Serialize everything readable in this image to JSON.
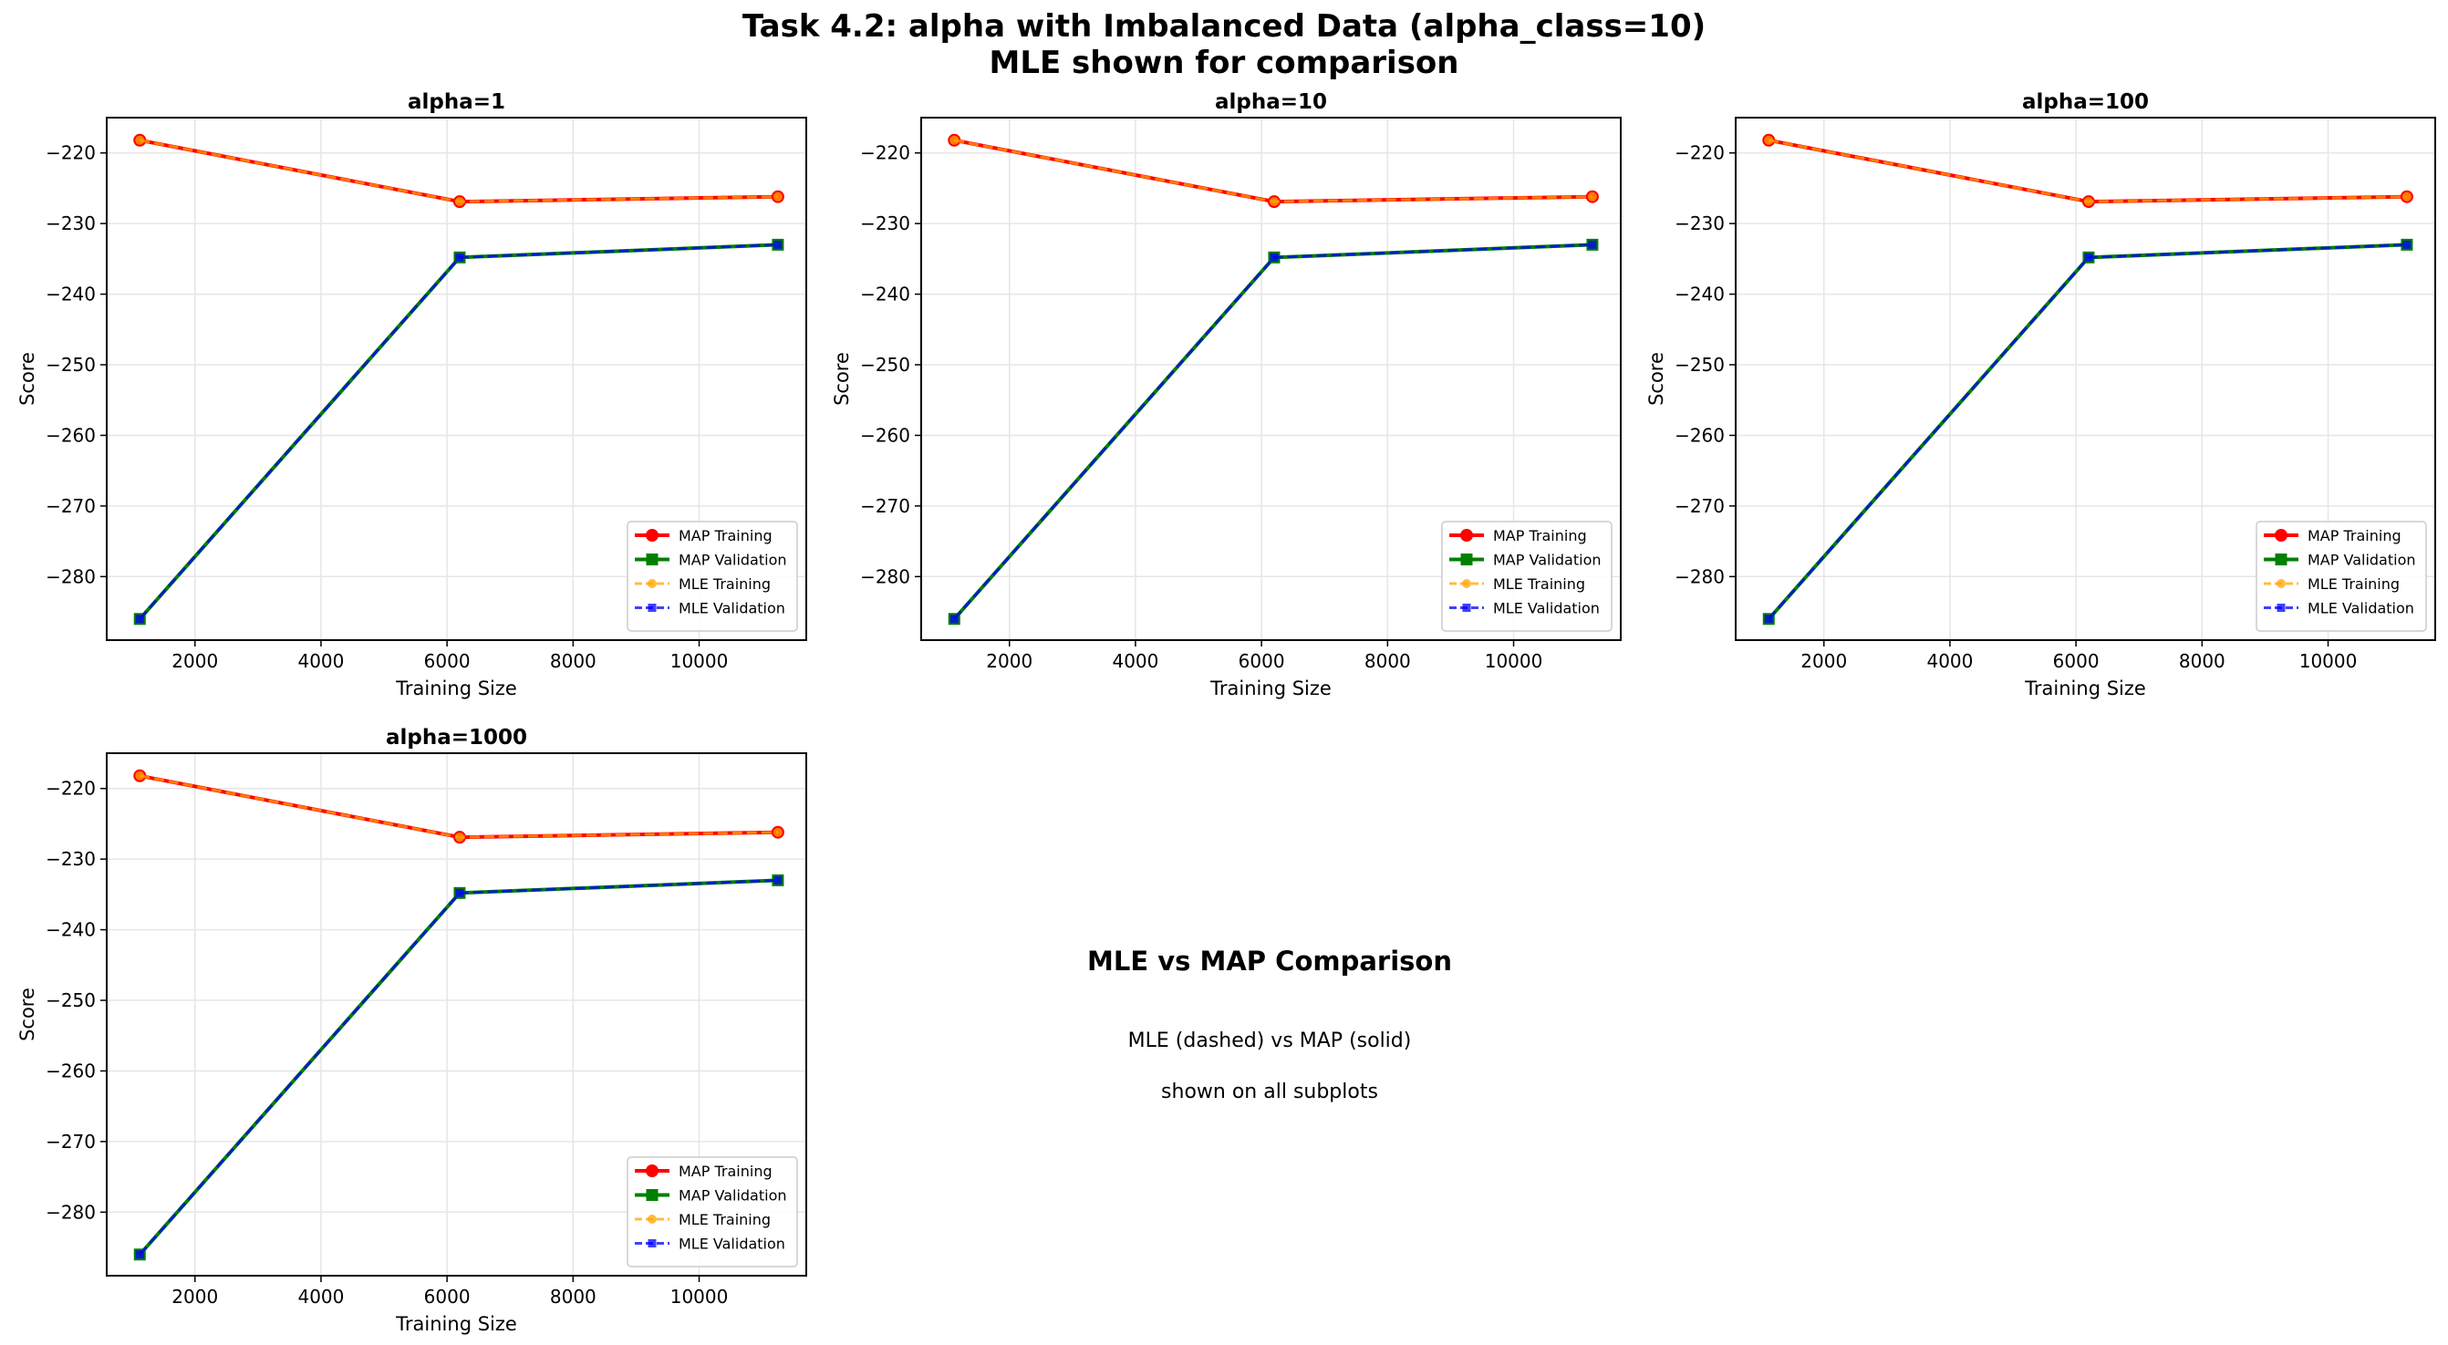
{
  "figure": {
    "title_line1": "Task 4.2: alpha with Imbalanced Data (alpha_class=10)",
    "title_line2": "MLE shown for comparison"
  },
  "note": {
    "title": "MLE vs MAP Comparison",
    "line1": "MLE (dashed) vs MAP (solid)",
    "line2": "shown on all subplots"
  },
  "colors": {
    "map_training": "#ff0000",
    "map_validation": "#008000",
    "mle_training": "#ffa500",
    "mle_validation": "#0000ff"
  },
  "chart_data": [
    {
      "type": "line",
      "title": "alpha=1",
      "xlabel": "Training Size",
      "ylabel": "Score",
      "xlim": [
        600,
        11700
      ],
      "ylim": [
        -289,
        -215
      ],
      "xticks": [
        2000,
        4000,
        6000,
        8000,
        10000
      ],
      "yticks": [
        -220,
        -230,
        -240,
        -250,
        -260,
        -270,
        -280
      ],
      "grid": true,
      "legend_position": "lower-right",
      "x": [
        1125,
        6200,
        11250
      ],
      "series": [
        {
          "name": "MAP Training",
          "values": [
            -218.2,
            -226.9,
            -226.2
          ],
          "color": "#ff0000",
          "linestyle": "solid",
          "marker": "circle"
        },
        {
          "name": "MAP Validation",
          "values": [
            -286.0,
            -234.8,
            -233.0
          ],
          "color": "#008000",
          "linestyle": "solid",
          "marker": "square"
        },
        {
          "name": "MLE Training",
          "values": [
            -218.2,
            -226.9,
            -226.2
          ],
          "color": "#ffa500",
          "linestyle": "dashed",
          "marker": "circle"
        },
        {
          "name": "MLE Validation",
          "values": [
            -286.0,
            -234.8,
            -233.0
          ],
          "color": "#0000ff",
          "linestyle": "dashed",
          "marker": "square"
        }
      ]
    },
    {
      "type": "line",
      "title": "alpha=10",
      "xlabel": "Training Size",
      "ylabel": "Score",
      "xlim": [
        600,
        11700
      ],
      "ylim": [
        -289,
        -215
      ],
      "xticks": [
        2000,
        4000,
        6000,
        8000,
        10000
      ],
      "yticks": [
        -220,
        -230,
        -240,
        -250,
        -260,
        -270,
        -280
      ],
      "grid": true,
      "legend_position": "lower-right",
      "x": [
        1125,
        6200,
        11250
      ],
      "series": [
        {
          "name": "MAP Training",
          "values": [
            -218.2,
            -226.9,
            -226.2
          ],
          "color": "#ff0000",
          "linestyle": "solid",
          "marker": "circle"
        },
        {
          "name": "MAP Validation",
          "values": [
            -286.0,
            -234.8,
            -233.0
          ],
          "color": "#008000",
          "linestyle": "solid",
          "marker": "square"
        },
        {
          "name": "MLE Training",
          "values": [
            -218.2,
            -226.9,
            -226.2
          ],
          "color": "#ffa500",
          "linestyle": "dashed",
          "marker": "circle"
        },
        {
          "name": "MLE Validation",
          "values": [
            -286.0,
            -234.8,
            -233.0
          ],
          "color": "#0000ff",
          "linestyle": "dashed",
          "marker": "square"
        }
      ]
    },
    {
      "type": "line",
      "title": "alpha=100",
      "xlabel": "Training Size",
      "ylabel": "Score",
      "xlim": [
        600,
        11700
      ],
      "ylim": [
        -289,
        -215
      ],
      "xticks": [
        2000,
        4000,
        6000,
        8000,
        10000
      ],
      "yticks": [
        -220,
        -230,
        -240,
        -250,
        -260,
        -270,
        -280
      ],
      "grid": true,
      "legend_position": "lower-right",
      "x": [
        1125,
        6200,
        11250
      ],
      "series": [
        {
          "name": "MAP Training",
          "values": [
            -218.2,
            -226.9,
            -226.2
          ],
          "color": "#ff0000",
          "linestyle": "solid",
          "marker": "circle"
        },
        {
          "name": "MAP Validation",
          "values": [
            -286.0,
            -234.8,
            -233.0
          ],
          "color": "#008000",
          "linestyle": "solid",
          "marker": "square"
        },
        {
          "name": "MLE Training",
          "values": [
            -218.2,
            -226.9,
            -226.2
          ],
          "color": "#ffa500",
          "linestyle": "dashed",
          "marker": "circle"
        },
        {
          "name": "MLE Validation",
          "values": [
            -286.0,
            -234.8,
            -233.0
          ],
          "color": "#0000ff",
          "linestyle": "dashed",
          "marker": "square"
        }
      ]
    },
    {
      "type": "line",
      "title": "alpha=1000",
      "xlabel": "Training Size",
      "ylabel": "Score",
      "xlim": [
        600,
        11700
      ],
      "ylim": [
        -289,
        -215
      ],
      "xticks": [
        2000,
        4000,
        6000,
        8000,
        10000
      ],
      "yticks": [
        -220,
        -230,
        -240,
        -250,
        -260,
        -270,
        -280
      ],
      "grid": true,
      "legend_position": "lower-right",
      "x": [
        1125,
        6200,
        11250
      ],
      "series": [
        {
          "name": "MAP Training",
          "values": [
            -218.2,
            -226.9,
            -226.2
          ],
          "color": "#ff0000",
          "linestyle": "solid",
          "marker": "circle"
        },
        {
          "name": "MAP Validation",
          "values": [
            -286.0,
            -234.8,
            -233.0
          ],
          "color": "#008000",
          "linestyle": "solid",
          "marker": "square"
        },
        {
          "name": "MLE Training",
          "values": [
            -218.2,
            -226.9,
            -226.2
          ],
          "color": "#ffa500",
          "linestyle": "dashed",
          "marker": "circle"
        },
        {
          "name": "MLE Validation",
          "values": [
            -286.0,
            -234.8,
            -233.0
          ],
          "color": "#0000ff",
          "linestyle": "dashed",
          "marker": "square"
        }
      ]
    }
  ]
}
